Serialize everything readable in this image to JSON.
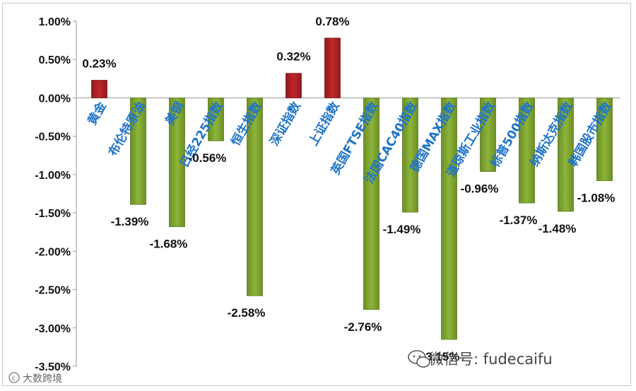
{
  "chart_data": {
    "type": "bar",
    "categories": [
      "黄金",
      "布伦特原油",
      "美铜",
      "日经225指数",
      "恒生指数",
      "深证指数",
      "上证指数",
      "英国FTSE指数",
      "法国CAC40指数",
      "德国MAX指数",
      "道琼斯工业指数",
      "标普500指数",
      "纳斯达克指数",
      "韩国股市指数"
    ],
    "values": [
      0.23,
      -1.39,
      -1.68,
      -0.56,
      -2.58,
      0.32,
      0.78,
      -2.76,
      -1.49,
      -3.15,
      -0.96,
      -1.37,
      -1.48,
      -1.08
    ],
    "data_labels": [
      "0.23%",
      "-1.39%",
      "-1.68%",
      "-0.56%",
      "-2.58%",
      "0.32%",
      "0.78%",
      "-2.76%",
      "-1.49%",
      "-3.15%",
      "-0.96%",
      "-1.37%",
      "-1.48%",
      "-1.08%"
    ],
    "y_ticks": [
      "1.00%",
      "0.50%",
      "0.00%",
      "-0.50%",
      "-1.00%",
      "-1.50%",
      "-2.00%",
      "-2.50%",
      "-3.00%",
      "-3.50%"
    ],
    "ylim": [
      -3.5,
      1.0
    ],
    "colors": {
      "positive": "#c0262b",
      "negative": "#8db43a"
    },
    "grid": false,
    "legend": "none"
  },
  "watermark": {
    "text": "微信号: fudecaifu",
    "icon": "wechat-icon"
  },
  "source_mark": {
    "text": "大数跨境",
    "icon": "copyright-icon"
  }
}
